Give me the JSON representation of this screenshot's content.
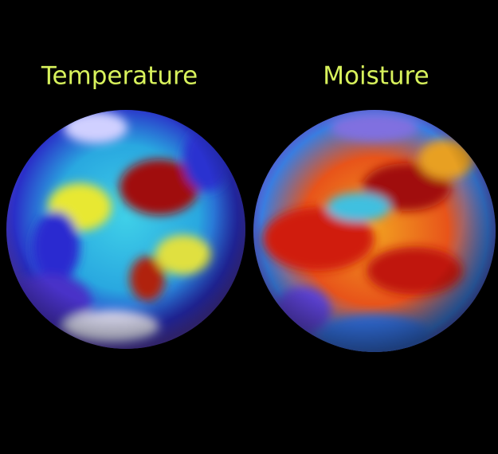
{
  "panels": [
    {
      "label": "Temperature"
    },
    {
      "label": "Moisture"
    }
  ]
}
